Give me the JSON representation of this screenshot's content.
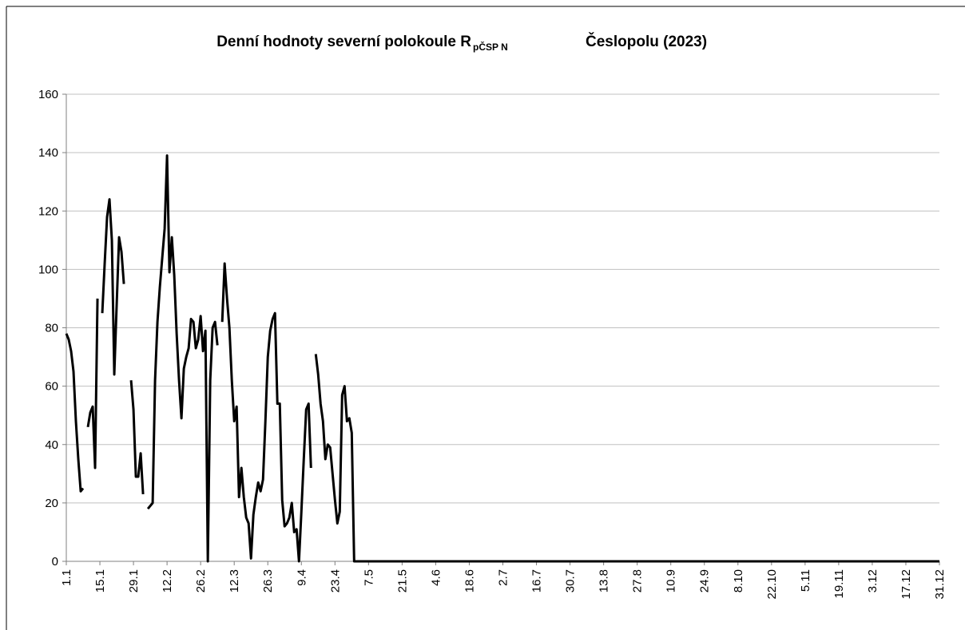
{
  "chart_data": {
    "type": "line",
    "title": "Denní hodnoty severní polokoule R",
    "title_subscript": "pČSP N",
    "title_suffix": "Česlopolu (2023)",
    "color": "#000000",
    "ylim": [
      0,
      160
    ],
    "yticks": [
      0,
      20,
      40,
      60,
      80,
      100,
      120,
      140,
      160
    ],
    "grid": true,
    "categories": [
      "1.1",
      null,
      null,
      null,
      null,
      null,
      null,
      null,
      null,
      null,
      null,
      null,
      null,
      null,
      "15.1",
      null,
      null,
      null,
      null,
      null,
      null,
      null,
      null,
      null,
      null,
      null,
      null,
      null,
      "29.1",
      null,
      null,
      null,
      null,
      null,
      null,
      null,
      null,
      null,
      null,
      null,
      null,
      null,
      "12.2",
      null,
      null,
      null,
      null,
      null,
      null,
      null,
      null,
      null,
      null,
      null,
      null,
      null,
      "26.2",
      null,
      null,
      null,
      null,
      null,
      null,
      null,
      null,
      null,
      null,
      null,
      null,
      null,
      "12.3",
      null,
      null,
      null,
      null,
      null,
      null,
      null,
      null,
      null,
      null,
      null,
      null,
      null,
      "26.3",
      null,
      null,
      null,
      null,
      null,
      null,
      null,
      null,
      null,
      null,
      null,
      null,
      null,
      "9.4",
      null,
      null,
      null,
      null,
      null,
      null,
      null,
      null,
      null,
      null,
      null,
      null,
      null,
      "23.4",
      null,
      null,
      null,
      null,
      null,
      null,
      null,
      null,
      null,
      null,
      null,
      null,
      null,
      "7.5",
      null,
      null,
      null,
      null,
      null,
      null,
      null,
      null,
      null,
      null,
      null,
      null,
      null,
      "21.5",
      null,
      null,
      null,
      null,
      null,
      null,
      null,
      null,
      null,
      null,
      null,
      null,
      null,
      "4.6",
      null,
      null,
      null,
      null,
      null,
      null,
      null,
      null,
      null,
      null,
      null,
      null,
      null,
      "18.6",
      null,
      null,
      null,
      null,
      null,
      null,
      null,
      null,
      null,
      null,
      null,
      null,
      null,
      "2.7",
      null,
      null,
      null,
      null,
      null,
      null,
      null,
      null,
      null,
      null,
      null,
      null,
      null,
      "16.7",
      null,
      null,
      null,
      null,
      null,
      null,
      null,
      null,
      null,
      null,
      null,
      null,
      null,
      "30.7",
      null,
      null,
      null,
      null,
      null,
      null,
      null,
      null,
      null,
      null,
      null,
      null,
      null,
      "13.8",
      null,
      null,
      null,
      null,
      null,
      null,
      null,
      null,
      null,
      null,
      null,
      null,
      null,
      "27.8",
      null,
      null,
      null,
      null,
      null,
      null,
      null,
      null,
      null,
      null,
      null,
      null,
      null,
      "10.9",
      null,
      null,
      null,
      null,
      null,
      null,
      null,
      null,
      null,
      null,
      null,
      null,
      null,
      "24.9",
      null,
      null,
      null,
      null,
      null,
      null,
      null,
      null,
      null,
      null,
      null,
      null,
      null,
      "8.10",
      null,
      null,
      null,
      null,
      null,
      null,
      null,
      null,
      null,
      null,
      null,
      null,
      null,
      "22.10",
      null,
      null,
      null,
      null,
      null,
      null,
      null,
      null,
      null,
      null,
      null,
      null,
      null,
      "5.11",
      null,
      null,
      null,
      null,
      null,
      null,
      null,
      null,
      null,
      null,
      null,
      null,
      null,
      "19.11",
      null,
      null,
      null,
      null,
      null,
      null,
      null,
      null,
      null,
      null,
      null,
      null,
      null,
      "3.12",
      null,
      null,
      null,
      null,
      null,
      null,
      null,
      null,
      null,
      null,
      null,
      null,
      null,
      "17.12",
      null,
      null,
      null,
      null,
      null,
      null,
      null,
      null,
      null,
      null,
      null,
      null,
      null,
      "31.12"
    ],
    "values": [
      78,
      76,
      72,
      65,
      48,
      35,
      24,
      25,
      null,
      46,
      51,
      53,
      32,
      90,
      null,
      85,
      102,
      118,
      124,
      110,
      64,
      88,
      111,
      106,
      95,
      null,
      null,
      62,
      52,
      29,
      29,
      37,
      23,
      null,
      18,
      19,
      20,
      62,
      82,
      94,
      104,
      114,
      139,
      99,
      111,
      98,
      78,
      62,
      49,
      66,
      70,
      73,
      83,
      82,
      73,
      76,
      84,
      72,
      79,
      0,
      62,
      80,
      82,
      74,
      null,
      82,
      102,
      90,
      80,
      62,
      48,
      53,
      22,
      32,
      22,
      15,
      13,
      1,
      16,
      22,
      27,
      24,
      28,
      48,
      70,
      79,
      83,
      85,
      54,
      54,
      21,
      12,
      13,
      15,
      20,
      10,
      11,
      0,
      17,
      35,
      52,
      54,
      32,
      null,
      71,
      64,
      54,
      48,
      35,
      40,
      39,
      30,
      21,
      13,
      17,
      57,
      60,
      48,
      49,
      44,
      0,
      0,
      0,
      0,
      0,
      0,
      0,
      0,
      0,
      0,
      0,
      0,
      0,
      0,
      0,
      0,
      0,
      0,
      0,
      0,
      0,
      0,
      0,
      0,
      0,
      0,
      0,
      0,
      0,
      0,
      0,
      0,
      0,
      0,
      0,
      0,
      0,
      0,
      0,
      0,
      0,
      0,
      0,
      0,
      0,
      0,
      0,
      0,
      0,
      0,
      0,
      0,
      0,
      0,
      0,
      0,
      0,
      0,
      0,
      0,
      0,
      0,
      0,
      0,
      0,
      0,
      0,
      0,
      0,
      0,
      0,
      0,
      0,
      0,
      0,
      0,
      0,
      0,
      0,
      0,
      0,
      0,
      0,
      0,
      0,
      0,
      0,
      0,
      0,
      0,
      0,
      0,
      0,
      0,
      0,
      0,
      0,
      0,
      0,
      0,
      0,
      0,
      0,
      0,
      0,
      0,
      0,
      0,
      0,
      0,
      0,
      0,
      0,
      0,
      0,
      0,
      0,
      0,
      0,
      0,
      0,
      0,
      0,
      0,
      0,
      0,
      0,
      0,
      0,
      0,
      0,
      0,
      0,
      0,
      0,
      0,
      0,
      0,
      0,
      0,
      0,
      0,
      0,
      0,
      0,
      0,
      0,
      0,
      0,
      0,
      0,
      0,
      0,
      0,
      0,
      0,
      0,
      0,
      0,
      0,
      0,
      0,
      0,
      0,
      0,
      0,
      0,
      0,
      0,
      0,
      0,
      0,
      0,
      0,
      0,
      0,
      0,
      0,
      0,
      0,
      0,
      0,
      0,
      0,
      0,
      0,
      0,
      0,
      0,
      0,
      0,
      0,
      0,
      0,
      0,
      0,
      0,
      0,
      0,
      0,
      0,
      0,
      0,
      0,
      0,
      0,
      0,
      0,
      0,
      0,
      0,
      0,
      0,
      0,
      0,
      0,
      0,
      0,
      0,
      0,
      0,
      0,
      0,
      0,
      0,
      0,
      0,
      0,
      0,
      0,
      0,
      0,
      0,
      0,
      0,
      0,
      0,
      0,
      0,
      0,
      0,
      0,
      0,
      0,
      0
    ]
  }
}
